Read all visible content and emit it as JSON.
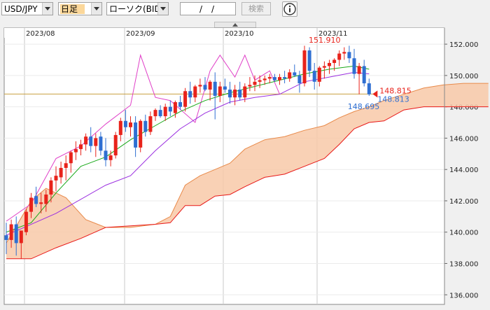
{
  "toolbar": {
    "pair": "USD/JPY",
    "timeframe": "日足",
    "chart_type": "ローソク(BID)",
    "date_sep1": "/",
    "date_sep2": "/",
    "search_label": "検索",
    "info_icon": "info-icon"
  },
  "colors": {
    "up": "#e8231b",
    "down": "#2f6fd2",
    "conversion": "#18a818",
    "base": "#9b2fe0",
    "lagging": "#e040c8",
    "cloud_fill": "#f8c9a8",
    "span_a": "#e88a4a",
    "span_b": "#e81818",
    "current_line": "#c8a040"
  },
  "chart_data": {
    "type": "candlestick",
    "symbol": "USD/JPY",
    "x_tick_labels": [
      "2023/08",
      "2023/09",
      "2023/10",
      "2023/11"
    ],
    "y_ticks": [
      136.0,
      138.0,
      140.0,
      142.0,
      144.0,
      146.0,
      148.0,
      150.0,
      152.0
    ],
    "y_tick_labels": [
      "136.000",
      "138.000",
      "140.000",
      "142.000",
      "144.000",
      "146.000",
      "148.000",
      "150.000",
      "152.000"
    ],
    "ylim": [
      135.7,
      153.3
    ],
    "annotations": {
      "high": "151.910",
      "low": "148.695",
      "current_red": "148.815",
      "current_blue": "148.813"
    },
    "candles": [
      [
        139.8,
        140.6,
        138.6,
        139.5
      ],
      [
        139.5,
        140.8,
        139.0,
        140.5
      ],
      [
        140.5,
        141.0,
        138.5,
        139.3
      ],
      [
        139.3,
        140.0,
        138.3,
        140.1
      ],
      [
        140.0,
        141.5,
        139.8,
        141.3
      ],
      [
        141.3,
        142.5,
        140.9,
        142.2
      ],
      [
        142.3,
        142.9,
        141.6,
        141.8
      ],
      [
        141.8,
        142.5,
        141.2,
        141.9
      ],
      [
        141.8,
        142.7,
        141.3,
        142.4
      ],
      [
        142.4,
        143.5,
        141.9,
        143.3
      ],
      [
        143.3,
        144.2,
        142.6,
        143.6
      ],
      [
        143.5,
        144.5,
        143.1,
        144.1
      ],
      [
        144.1,
        144.9,
        143.3,
        144.4
      ],
      [
        144.4,
        145.2,
        143.8,
        145.1
      ],
      [
        145.1,
        145.8,
        144.6,
        145.3
      ],
      [
        145.3,
        145.9,
        144.9,
        145.6
      ],
      [
        145.6,
        146.3,
        145.2,
        146.1
      ],
      [
        146.1,
        146.7,
        145.1,
        145.5
      ],
      [
        145.5,
        146.3,
        144.8,
        146.0
      ],
      [
        146.1,
        146.4,
        144.9,
        145.2
      ],
      [
        145.2,
        146.0,
        144.2,
        144.6
      ],
      [
        144.6,
        145.2,
        144.2,
        144.9
      ],
      [
        144.9,
        146.4,
        144.7,
        146.2
      ],
      [
        146.2,
        147.3,
        145.8,
        147.1
      ],
      [
        147.1,
        147.8,
        146.4,
        146.7
      ],
      [
        146.7,
        147.4,
        146.1,
        147.0
      ],
      [
        147.0,
        147.4,
        144.8,
        145.4
      ],
      [
        145.4,
        147.2,
        145.1,
        147.1
      ],
      [
        147.1,
        147.5,
        146.1,
        146.4
      ],
      [
        146.4,
        147.7,
        146.2,
        147.4
      ],
      [
        147.4,
        147.9,
        147.1,
        147.8
      ],
      [
        147.8,
        148.1,
        147.3,
        147.4
      ],
      [
        147.4,
        148.2,
        147.1,
        148.0
      ],
      [
        148.0,
        148.4,
        147.4,
        147.7
      ],
      [
        147.6,
        148.4,
        147.3,
        148.3
      ],
      [
        148.3,
        148.7,
        147.8,
        148.0
      ],
      [
        148.0,
        149.2,
        147.7,
        149.0
      ],
      [
        149.0,
        149.6,
        148.2,
        148.6
      ],
      [
        148.6,
        149.4,
        148.3,
        149.3
      ],
      [
        149.3,
        149.8,
        148.9,
        149.4
      ],
      [
        149.4,
        149.9,
        149.0,
        149.1
      ],
      [
        149.1,
        149.7,
        148.4,
        149.6
      ],
      [
        149.6,
        150.2,
        147.2,
        148.7
      ],
      [
        148.7,
        149.6,
        148.3,
        149.3
      ],
      [
        149.3,
        149.8,
        148.9,
        149.1
      ],
      [
        149.1,
        149.6,
        148.2,
        148.6
      ],
      [
        148.6,
        149.4,
        148.1,
        149.1
      ],
      [
        149.1,
        149.6,
        148.4,
        148.6
      ],
      [
        148.6,
        149.5,
        148.3,
        149.3
      ],
      [
        149.3,
        149.9,
        149.0,
        149.4
      ],
      [
        149.4,
        150.0,
        149.0,
        149.6
      ],
      [
        149.6,
        150.0,
        149.2,
        149.7
      ],
      [
        149.7,
        150.0,
        149.4,
        149.8
      ],
      [
        149.8,
        150.1,
        149.5,
        149.9
      ],
      [
        149.9,
        150.1,
        149.6,
        149.7
      ],
      [
        149.7,
        150.1,
        149.4,
        149.9
      ],
      [
        149.9,
        150.3,
        149.5,
        149.8
      ],
      [
        149.8,
        150.4,
        149.6,
        150.2
      ],
      [
        150.2,
        150.7,
        149.9,
        150.0
      ],
      [
        150.0,
        150.3,
        148.9,
        149.5
      ],
      [
        149.5,
        151.9,
        149.3,
        151.6
      ],
      [
        151.6,
        151.8,
        149.9,
        150.3
      ],
      [
        150.3,
        150.8,
        149.1,
        149.6
      ],
      [
        149.6,
        150.6,
        149.3,
        150.5
      ],
      [
        150.5,
        150.9,
        149.8,
        150.6
      ],
      [
        150.6,
        151.0,
        150.1,
        150.8
      ],
      [
        150.8,
        151.1,
        150.3,
        151.0
      ],
      [
        151.0,
        151.6,
        150.6,
        151.4
      ],
      [
        151.4,
        151.8,
        151.0,
        151.5
      ],
      [
        151.5,
        151.9,
        150.8,
        151.1
      ],
      [
        151.1,
        151.7,
        149.8,
        150.1
      ],
      [
        150.1,
        150.8,
        148.8,
        150.6
      ],
      [
        150.6,
        151.0,
        149.3,
        149.5
      ],
      [
        149.5,
        149.8,
        148.7,
        148.8
      ]
    ],
    "conversion_line": [
      [
        0,
        140.0
      ],
      [
        5,
        140.6
      ],
      [
        10,
        142.5
      ],
      [
        15,
        144.2
      ],
      [
        20,
        144.8
      ],
      [
        25,
        145.9
      ],
      [
        30,
        146.8
      ],
      [
        35,
        147.7
      ],
      [
        40,
        148.4
      ],
      [
        45,
        148.9
      ],
      [
        50,
        149.3
      ],
      [
        55,
        149.7
      ],
      [
        60,
        150.1
      ],
      [
        65,
        150.4
      ],
      [
        70,
        150.6
      ],
      [
        73,
        150.4
      ]
    ],
    "base_line": [
      [
        0,
        139.8
      ],
      [
        10,
        141.2
      ],
      [
        20,
        143.0
      ],
      [
        25,
        143.6
      ],
      [
        30,
        145.2
      ],
      [
        35,
        146.6
      ],
      [
        40,
        147.6
      ],
      [
        45,
        148.3
      ],
      [
        50,
        148.6
      ],
      [
        55,
        148.8
      ],
      [
        60,
        149.6
      ],
      [
        65,
        149.9
      ],
      [
        70,
        150.2
      ],
      [
        73,
        150.1
      ]
    ],
    "lagging_span": [
      [
        0,
        140.7
      ],
      [
        5,
        141.8
      ],
      [
        10,
        144.7
      ],
      [
        15,
        145.5
      ],
      [
        20,
        146.9
      ],
      [
        25,
        148.1
      ],
      [
        27,
        151.3
      ],
      [
        30,
        148.6
      ],
      [
        33,
        148.4
      ],
      [
        38,
        147.0
      ],
      [
        41,
        150.3
      ],
      [
        43,
        151.3
      ],
      [
        46,
        149.9
      ],
      [
        48,
        151.3
      ],
      [
        50,
        149.7
      ],
      [
        53,
        150.3
      ],
      [
        55,
        148.8
      ]
    ],
    "cloud_span_a": [
      [
        0,
        139.3
      ],
      [
        5,
        142.0
      ],
      [
        8,
        142.8
      ],
      [
        12,
        142.2
      ],
      [
        16,
        140.8
      ],
      [
        20,
        140.3
      ],
      [
        25,
        140.3
      ],
      [
        30,
        140.5
      ],
      [
        33,
        141.0
      ],
      [
        36,
        143.0
      ],
      [
        39,
        143.6
      ],
      [
        42,
        144.0
      ],
      [
        45,
        144.4
      ],
      [
        48,
        145.3
      ],
      [
        52,
        145.9
      ],
      [
        56,
        146.1
      ],
      [
        60,
        146.5
      ],
      [
        64,
        146.8
      ],
      [
        67,
        147.3
      ],
      [
        70,
        147.7
      ],
      [
        73,
        148.0
      ],
      [
        76,
        148.4
      ],
      [
        80,
        148.8
      ],
      [
        84,
        149.2
      ],
      [
        88,
        149.4
      ],
      [
        92,
        149.5
      ],
      [
        97,
        149.5
      ]
    ],
    "cloud_span_b": [
      [
        0,
        138.3
      ],
      [
        5,
        138.3
      ],
      [
        10,
        139.0
      ],
      [
        15,
        139.6
      ],
      [
        20,
        140.3
      ],
      [
        25,
        140.4
      ],
      [
        30,
        140.5
      ],
      [
        33,
        140.6
      ],
      [
        36,
        141.7
      ],
      [
        39,
        141.7
      ],
      [
        42,
        142.3
      ],
      [
        45,
        142.4
      ],
      [
        48,
        142.9
      ],
      [
        52,
        143.5
      ],
      [
        56,
        143.7
      ],
      [
        60,
        144.2
      ],
      [
        64,
        144.7
      ],
      [
        67,
        145.6
      ],
      [
        70,
        146.6
      ],
      [
        73,
        147.0
      ],
      [
        76,
        147.1
      ],
      [
        80,
        147.8
      ],
      [
        84,
        148.0
      ],
      [
        88,
        148.0
      ],
      [
        92,
        148.0
      ],
      [
        97,
        148.0
      ]
    ],
    "current_price_level": 148.815,
    "grid": true
  }
}
